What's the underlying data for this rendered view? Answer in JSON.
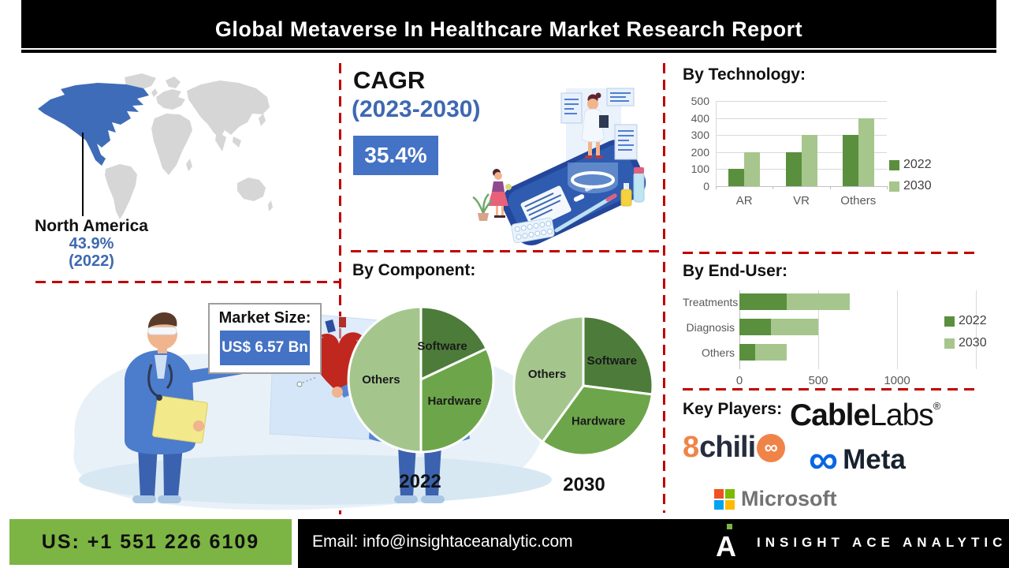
{
  "banner": {
    "title": "Global Metaverse In Healthcare Market  Research Report"
  },
  "map": {
    "region_label": "North America",
    "share": "43.9%",
    "year": "(2022)",
    "highlight_color": "#3E6CB8",
    "base_color": "#D6D6D6"
  },
  "cagr": {
    "heading": "CAGR",
    "period": "(2023-2030)",
    "value": "35.4%"
  },
  "market_size": {
    "label": "Market Size:",
    "value": "US$ 6.57 Bn"
  },
  "chart_data": [
    {
      "id": "by_technology",
      "type": "bar",
      "title": "By Technology:",
      "categories": [
        "AR",
        "VR",
        "Others"
      ],
      "series": [
        {
          "name": "2022",
          "color": "#5a8f3e",
          "values": [
            100,
            200,
            300
          ]
        },
        {
          "name": "2030",
          "color": "#a6c68d",
          "values": [
            200,
            300,
            400
          ]
        }
      ],
      "ylim": [
        0,
        500
      ],
      "yticks": [
        0,
        100,
        200,
        300,
        400,
        500
      ],
      "grid": true,
      "legend_position": "right"
    },
    {
      "id": "by_component",
      "type": "pie",
      "title": "By Component:",
      "unit": "approx %",
      "pies": [
        {
          "label": "2022",
          "slices": [
            {
              "name": "Software",
              "value": 18,
              "color": "#4d7c3a"
            },
            {
              "name": "Hardware",
              "value": 32,
              "color": "#6da64a"
            },
            {
              "name": "Others",
              "value": 50,
              "color": "#a4c68d"
            }
          ]
        },
        {
          "label": "2030",
          "slices": [
            {
              "name": "Software",
              "value": 27,
              "color": "#4d7c3a"
            },
            {
              "name": "Hardware",
              "value": 33,
              "color": "#6da64a"
            },
            {
              "name": "Others",
              "value": 40,
              "color": "#a4c68d"
            }
          ]
        }
      ]
    },
    {
      "id": "by_end_user",
      "type": "bar-horizontal-stacked",
      "title": "By End-User:",
      "categories": [
        "Treatments",
        "Diagnosis",
        "Others"
      ],
      "series": [
        {
          "name": "2022",
          "color": "#5a8f3e",
          "values": [
            300,
            200,
            100
          ]
        },
        {
          "name": "2030",
          "color": "#a6c68d",
          "values": [
            400,
            300,
            200
          ]
        }
      ],
      "xlim": [
        0,
        1500
      ],
      "xticks": [
        0,
        500,
        1000
      ],
      "grid": true,
      "legend_position": "right"
    }
  ],
  "key_players": {
    "heading": "Key Players:",
    "cablelabs_bold": "Cable",
    "cablelabs_light": "Labs",
    "cablelabs_reg": "®",
    "chili_digit": "8",
    "chili_word": "chili",
    "chili_icon": "∞",
    "meta_icon": "∞",
    "meta_word": "Meta",
    "microsoft_word": "Microsoft"
  },
  "footer": {
    "phone": "US: +1 551 226 6109",
    "email": "Email: info@insightaceanalytic.com",
    "brand": "INSIGHT ACE ANALYTIC"
  },
  "colors": {
    "dashed_line": "#C00000",
    "accent_blue": "#4472C4",
    "blue_text": "#3E68B1",
    "footer_green": "#7CB543",
    "green_dark": "#5a8f3e",
    "green_mid": "#6da64a",
    "green_light": "#a6c68d",
    "chili_orange": "#F08448",
    "meta_blue": "#0866E3",
    "microsoft_red": "#F25022",
    "microsoft_green": "#7FBA00",
    "microsoft_blue": "#00A4EF",
    "microsoft_yellow": "#FFB900"
  }
}
